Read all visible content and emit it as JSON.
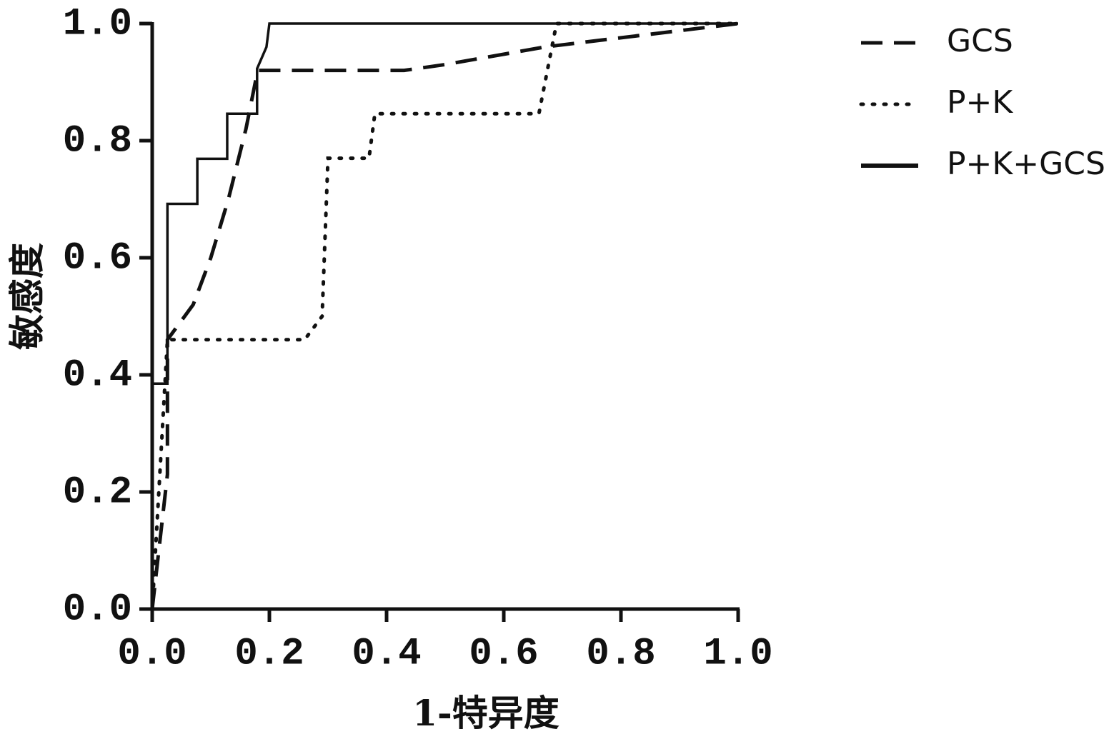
{
  "chart_data": {
    "type": "line",
    "xlabel": "1-特异度",
    "ylabel": "敏感度",
    "xlim": [
      0,
      1
    ],
    "ylim": [
      0,
      1
    ],
    "xticks": [
      {
        "value": 0,
        "label": "0.0"
      },
      0.2,
      0.4,
      0.6,
      0.8,
      {
        "value": 1,
        "label": "1.0"
      }
    ],
    "yticks": [
      {
        "value": 0,
        "label": "0.0"
      },
      0.2,
      0.4,
      0.6,
      0.8,
      {
        "value": 1,
        "label": "1.0"
      }
    ],
    "legend": "right",
    "series": [
      {
        "name": "GCS",
        "color": "#111111",
        "style": "dashed",
        "x": [
          0,
          0.026,
          0.026,
          0.07,
          0.1,
          0.13,
          0.16,
          0.18,
          0.43,
          0.5,
          0.67,
          1
        ],
        "values": [
          0,
          0.23,
          0.46,
          0.52,
          0.6,
          0.7,
          0.82,
          0.92,
          0.92,
          0.93,
          0.96,
          1
        ]
      },
      {
        "name": "P+K",
        "color": "#111111",
        "style": "dotted",
        "x": [
          0,
          0.026,
          0.26,
          0.29,
          0.3,
          0.37,
          0.38,
          0.66,
          0.69,
          1
        ],
        "values": [
          0,
          0.46,
          0.46,
          0.5,
          0.77,
          0.77,
          0.846,
          0.846,
          1,
          1
        ]
      },
      {
        "name": "P+K+GCS",
        "color": "#111111",
        "style": "solid",
        "x": [
          0,
          0,
          0.026,
          0.026,
          0.077,
          0.077,
          0.128,
          0.128,
          0.179,
          0.179,
          0.195,
          0.2,
          1
        ],
        "values": [
          0,
          0.385,
          0.385,
          0.692,
          0.692,
          0.769,
          0.769,
          0.846,
          0.846,
          0.923,
          0.96,
          1,
          1
        ]
      }
    ]
  }
}
